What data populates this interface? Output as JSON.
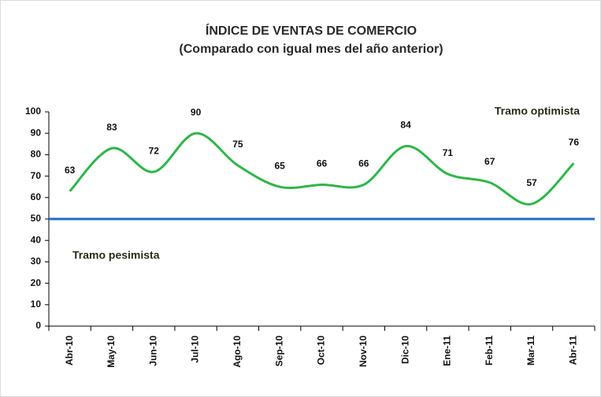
{
  "chart_data": {
    "type": "line",
    "title": "ÍNDICE DE VENTAS DE COMERCIO",
    "subtitle": "(Comparado con igual mes del año anterior)",
    "categories": [
      "Abr-10",
      "May-10",
      "Jun-10",
      "Jul-10",
      "Ago-10",
      "Sep-10",
      "Oct-10",
      "Nov-10",
      "Dic-10",
      "Ene-11",
      "Feb-11",
      "Mar-11",
      "Abr-11"
    ],
    "series": [
      {
        "name": "Índice",
        "color": "#2fb54a",
        "values": [
          63,
          83,
          72,
          90,
          75,
          65,
          66,
          66,
          84,
          71,
          67,
          57,
          76
        ]
      }
    ],
    "reference_line": {
      "value": 50,
      "color": "#1f6fc0"
    },
    "annotations": [
      "Tramo optimista",
      "Tramo pesimista"
    ],
    "ylim": [
      0,
      100
    ],
    "yticks": [
      0,
      10,
      20,
      30,
      40,
      50,
      60,
      70,
      80,
      90,
      100
    ],
    "smooth": true
  }
}
